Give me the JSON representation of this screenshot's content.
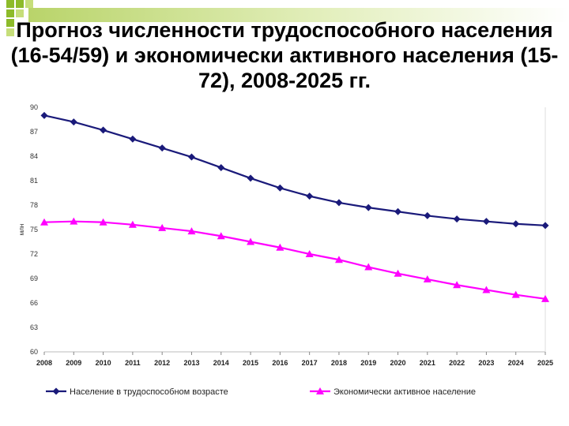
{
  "title": "Прогноз численности трудоспособного населения (16-54/59) и экономически активного населения (15-72), 2008-2025 гг.",
  "chart_data": {
    "type": "line",
    "title": "Прогноз численности трудоспособного населения (16-54/59) и экономически активного населения (15-72), 2008-2025 гг.",
    "ylabel": "млн",
    "xlabel": "",
    "ylim": [
      60,
      90
    ],
    "yticks": [
      60,
      63,
      66,
      69,
      72,
      75,
      78,
      81,
      84,
      87,
      90
    ],
    "categories": [
      "2008",
      "2009",
      "2010",
      "2011",
      "2012",
      "2013",
      "2014",
      "2015",
      "2016",
      "2017",
      "2018",
      "2019",
      "2020",
      "2021",
      "2022",
      "2023",
      "2024",
      "2025"
    ],
    "grid": false,
    "legend": "bottom",
    "series": [
      {
        "name": "Население в трудоспособном возрасте",
        "color": "#1a1a7a",
        "marker": "diamond",
        "values": [
          89.0,
          88.2,
          87.2,
          86.1,
          85.0,
          83.9,
          82.6,
          81.3,
          80.1,
          79.1,
          78.3,
          77.7,
          77.2,
          76.7,
          76.3,
          76.0,
          75.7,
          75.5
        ]
      },
      {
        "name": "Экономически активное население",
        "color": "#ff00ff",
        "marker": "triangle",
        "values": [
          75.9,
          76.0,
          75.9,
          75.6,
          75.2,
          74.8,
          74.2,
          73.5,
          72.8,
          72.0,
          71.3,
          70.4,
          69.6,
          68.9,
          68.2,
          67.6,
          67.0,
          66.5
        ]
      }
    ]
  }
}
